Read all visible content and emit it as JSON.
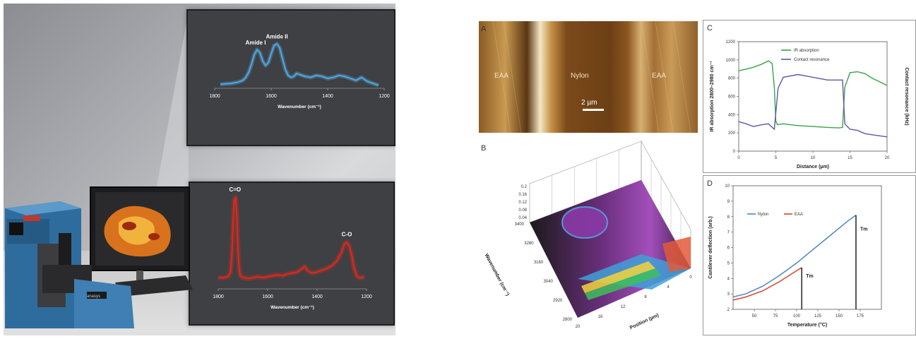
{
  "chart_data": [
    {
      "id": "ir-amide",
      "type": "line",
      "peak_labels": [
        "Amide I",
        "Amide II"
      ],
      "xlabel": "Wavenumber (cm⁻¹)",
      "x_ticks": [
        1800,
        1600,
        1400,
        1200
      ],
      "xlim": [
        1800,
        1200
      ],
      "ylim": [
        0,
        1
      ],
      "series": [
        {
          "color": "#4fa3d9",
          "x": [
            1780,
            1740,
            1720,
            1700,
            1690,
            1680,
            1670,
            1660,
            1650,
            1640,
            1630,
            1620,
            1610,
            1600,
            1590,
            1580,
            1570,
            1560,
            1550,
            1540,
            1530,
            1520,
            1510,
            1500,
            1480,
            1460,
            1440,
            1420,
            1400,
            1380,
            1360,
            1340,
            1320,
            1300,
            1280,
            1260,
            1240,
            1220
          ],
          "y": [
            0.08,
            0.1,
            0.12,
            0.16,
            0.22,
            0.32,
            0.48,
            0.68,
            0.78,
            0.72,
            0.55,
            0.46,
            0.52,
            0.7,
            0.86,
            0.9,
            0.82,
            0.6,
            0.38,
            0.26,
            0.22,
            0.24,
            0.3,
            0.28,
            0.24,
            0.22,
            0.26,
            0.24,
            0.2,
            0.22,
            0.26,
            0.24,
            0.2,
            0.16,
            0.22,
            0.14,
            0.1,
            0.06
          ]
        }
      ]
    },
    {
      "id": "ir-ester",
      "type": "line",
      "peak_labels": [
        "C=O",
        "C-O"
      ],
      "xlabel": "Wavenumber (cm⁻¹)",
      "x_ticks": [
        1800,
        1600,
        1400,
        1200
      ],
      "xlim": [
        1800,
        1200
      ],
      "ylim": [
        0,
        1
      ],
      "series": [
        {
          "color": "#d62a1f",
          "x": [
            1800,
            1780,
            1760,
            1750,
            1745,
            1740,
            1735,
            1730,
            1725,
            1720,
            1715,
            1710,
            1700,
            1690,
            1680,
            1660,
            1640,
            1620,
            1600,
            1580,
            1560,
            1540,
            1520,
            1500,
            1480,
            1460,
            1450,
            1440,
            1430,
            1420,
            1400,
            1380,
            1360,
            1340,
            1320,
            1300,
            1290,
            1280,
            1270,
            1260,
            1250,
            1240,
            1230,
            1220,
            1210
          ],
          "y": [
            0.12,
            0.12,
            0.13,
            0.18,
            0.35,
            0.7,
            0.95,
            0.98,
            0.8,
            0.4,
            0.2,
            0.14,
            0.12,
            0.12,
            0.11,
            0.12,
            0.13,
            0.12,
            0.13,
            0.14,
            0.15,
            0.14,
            0.16,
            0.17,
            0.18,
            0.22,
            0.24,
            0.2,
            0.18,
            0.17,
            0.18,
            0.2,
            0.22,
            0.25,
            0.3,
            0.4,
            0.48,
            0.5,
            0.46,
            0.36,
            0.22,
            0.14,
            0.12,
            0.12,
            0.13
          ]
        }
      ]
    },
    {
      "id": "C",
      "type": "line",
      "panel_letter": "C",
      "legend": [
        "IR absorption",
        "Contact resonance"
      ],
      "xlabel": "Distance (µm)",
      "ylabel_left": "IR absorption 2800–2980 cm⁻¹",
      "ylabel_right": "Contact resonance (kHz)",
      "x_ticks": [
        0,
        5,
        10,
        15,
        20
      ],
      "xlim": [
        0,
        20
      ],
      "ylim_left": [
        0,
        1200
      ],
      "ylim_right": [
        400,
        600
      ],
      "y_ticks_left": [
        0,
        200,
        400,
        600,
        800,
        1000,
        1200
      ],
      "series": [
        {
          "name": "IR absorption",
          "color": "#3aa24a",
          "x": [
            0,
            1,
            2,
            3,
            4,
            4.5,
            4.8,
            5,
            5.2,
            6,
            8,
            10,
            12,
            13.5,
            14,
            14.3,
            15,
            16,
            17,
            18,
            19,
            20
          ],
          "y": [
            880,
            900,
            920,
            950,
            990,
            960,
            700,
            330,
            290,
            300,
            280,
            270,
            260,
            255,
            260,
            700,
            860,
            870,
            850,
            800,
            760,
            720
          ]
        },
        {
          "name": "Contact resonance",
          "color": "#5a5aa8",
          "x": [
            0,
            1,
            2,
            3,
            4,
            4.8,
            5,
            5.3,
            6,
            8,
            10,
            12,
            13.5,
            14,
            14.3,
            15,
            16,
            17,
            18,
            19,
            20
          ],
          "y": [
            454,
            450,
            445,
            448,
            450,
            440,
            470,
            515,
            535,
            540,
            535,
            530,
            530,
            530,
            450,
            440,
            438,
            432,
            430,
            428,
            426
          ]
        }
      ]
    },
    {
      "id": "D",
      "type": "line",
      "panel_letter": "D",
      "legend": [
        "Nylon",
        "EAA"
      ],
      "xlabel": "Temperature (°C)",
      "ylabel": "Cantilever deflection (arb.)",
      "x_ticks": [
        50,
        75,
        100,
        125,
        150,
        175
      ],
      "xlim": [
        25,
        200
      ],
      "ylim": [
        2,
        10
      ],
      "y_ticks": [
        2,
        3,
        4,
        5,
        6,
        7,
        8,
        9,
        10
      ],
      "annotations": [
        "Tm",
        "Tm"
      ],
      "series": [
        {
          "name": "Nylon",
          "color": "#4a86c8",
          "x": [
            25,
            40,
            60,
            80,
            100,
            120,
            140,
            160,
            170
          ],
          "y": [
            2.8,
            3.0,
            3.5,
            4.2,
            5.0,
            5.9,
            6.8,
            7.7,
            8.1
          ]
        },
        {
          "name": "EAA",
          "color": "#d9432b",
          "x": [
            25,
            40,
            60,
            80,
            100,
            106
          ],
          "y": [
            2.6,
            2.8,
            3.2,
            3.8,
            4.5,
            4.7
          ]
        }
      ]
    },
    {
      "id": "B",
      "type": "heatmap",
      "panel_letter": "B",
      "xlabel": "Position (µm)",
      "ylabel": "Wavenumber (cm⁻¹)",
      "x_ticks": [
        0,
        4,
        8,
        12,
        16,
        20
      ],
      "y_ticks": [
        2800,
        2920,
        3040,
        3160,
        3280,
        3400
      ],
      "z_ticks": [
        0.2,
        0.16,
        0.12,
        0.08,
        0.04
      ]
    }
  ],
  "afm": {
    "panel_letter": "A",
    "labels": [
      "EAA",
      "Nylon",
      "EAA"
    ],
    "scale": "2 µm"
  },
  "instrument": {
    "brand": "anasys"
  }
}
